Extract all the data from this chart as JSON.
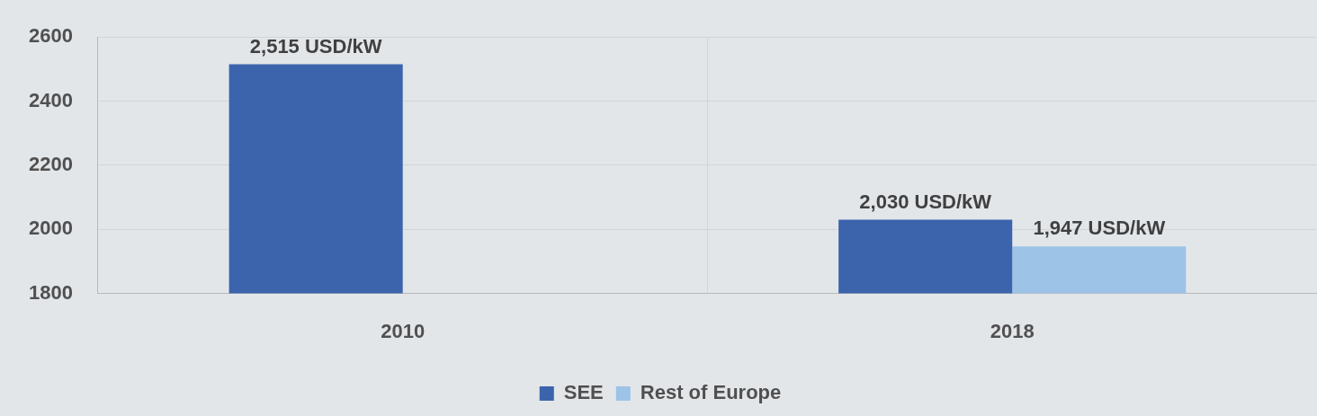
{
  "chart_data": {
    "type": "bar",
    "categories": [
      "2010",
      "2018"
    ],
    "series": [
      {
        "name": "SEE",
        "color": "#3c64ad",
        "values": [
          2515,
          2030
        ],
        "value_labels": [
          "2,515 USD/kW",
          "2,030 USD/kW"
        ]
      },
      {
        "name": "Rest of Europe",
        "color": "#9dc3e6",
        "values": [
          null,
          1947
        ],
        "value_labels": [
          null,
          "1,947 USD/kW"
        ]
      }
    ],
    "ylim": [
      1800,
      2600
    ],
    "yticks": [
      1800,
      2000,
      2200,
      2400,
      2600
    ],
    "grid": true,
    "legend": "bottom"
  }
}
